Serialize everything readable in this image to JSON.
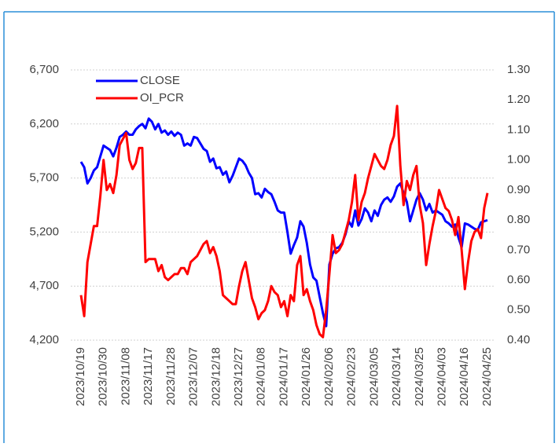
{
  "chart_data": {
    "type": "line",
    "categories": [
      "2023/10/19",
      null,
      null,
      null,
      null,
      null,
      null,
      "2023/10/30",
      null,
      null,
      null,
      null,
      null,
      null,
      "2023/11/08",
      null,
      null,
      null,
      null,
      null,
      null,
      "2023/11/17",
      null,
      null,
      null,
      null,
      null,
      null,
      "2023/11/28",
      null,
      null,
      null,
      null,
      null,
      null,
      "2023/12/07",
      null,
      null,
      null,
      null,
      null,
      null,
      "2023/12/18",
      null,
      null,
      null,
      null,
      null,
      null,
      "2023/12/27",
      null,
      null,
      null,
      null,
      null,
      null,
      "2024/01/08",
      null,
      null,
      null,
      null,
      null,
      null,
      "2024/01/17",
      null,
      null,
      null,
      null,
      null,
      null,
      "2024/01/26",
      null,
      null,
      null,
      null,
      null,
      null,
      "2024/02/06",
      null,
      null,
      null,
      null,
      null,
      null,
      "2024/02/23",
      null,
      null,
      null,
      null,
      null,
      null,
      "2024/03/05",
      null,
      null,
      null,
      null,
      null,
      null,
      "2024/03/14",
      null,
      null,
      null,
      null,
      null,
      null,
      "2024/03/25",
      null,
      null,
      null,
      null,
      null,
      null,
      "2024/04/03",
      null,
      null,
      null,
      null,
      null,
      null,
      "2024/04/16",
      null,
      null,
      null,
      null,
      null,
      null,
      "2024/04/25"
    ],
    "series": [
      {
        "name": "CLOSE",
        "color": "#0000ff",
        "values": [
          5850,
          5800,
          5650,
          5700,
          5770,
          5800,
          5900,
          6000,
          5980,
          5960,
          5900,
          5980,
          6080,
          6100,
          6130,
          6100,
          6100,
          6150,
          6180,
          6200,
          6160,
          6250,
          6220,
          6150,
          6200,
          6120,
          6140,
          6100,
          6130,
          6090,
          6120,
          6100,
          6000,
          6020,
          6000,
          6080,
          6070,
          6020,
          5970,
          5950,
          5850,
          5880,
          5790,
          5800,
          5730,
          5760,
          5660,
          5720,
          5800,
          5880,
          5860,
          5820,
          5750,
          5700,
          5550,
          5560,
          5520,
          5600,
          5570,
          5550,
          5480,
          5400,
          5380,
          5380,
          5200,
          5000,
          5080,
          5150,
          5300,
          5250,
          5100,
          4900,
          4780,
          4750,
          4600,
          4450,
          4330,
          4900,
          5000,
          5050,
          5060,
          5100,
          5180,
          5300,
          5250,
          5400,
          5260,
          5320,
          5420,
          5380,
          5300,
          5400,
          5350,
          5450,
          5500,
          5520,
          5480,
          5530,
          5620,
          5650,
          5560,
          5480,
          5300,
          5400,
          5500,
          5560,
          5500,
          5400,
          5460,
          5380,
          5400,
          5380,
          5360,
          5300,
          5280,
          5250,
          5270,
          5150,
          5060,
          5280,
          5270,
          5250,
          5230,
          5220,
          5290,
          5300,
          5310
        ]
      },
      {
        "name": "OI_PCR",
        "color": "#ff0000",
        "axis": "y2",
        "values": [
          0.55,
          0.48,
          0.66,
          0.72,
          0.78,
          0.78,
          0.88,
          1.0,
          0.9,
          0.92,
          0.89,
          0.95,
          1.05,
          1.07,
          1.09,
          1.0,
          0.97,
          0.99,
          1.04,
          1.04,
          0.66,
          0.67,
          0.67,
          0.67,
          0.63,
          0.65,
          0.61,
          0.6,
          0.61,
          0.62,
          0.62,
          0.64,
          0.64,
          0.62,
          0.66,
          0.67,
          0.68,
          0.7,
          0.72,
          0.73,
          0.69,
          0.71,
          0.68,
          0.63,
          0.55,
          0.54,
          0.53,
          0.52,
          0.52,
          0.58,
          0.63,
          0.66,
          0.6,
          0.54,
          0.51,
          0.47,
          0.49,
          0.5,
          0.53,
          0.58,
          0.56,
          0.55,
          0.51,
          0.53,
          0.48,
          0.55,
          0.53,
          0.65,
          0.68,
          0.55,
          0.57,
          0.53,
          0.5,
          0.45,
          0.42,
          0.41,
          0.5,
          0.62,
          0.75,
          0.69,
          0.7,
          0.72,
          0.76,
          0.8,
          0.86,
          0.95,
          0.8,
          0.86,
          0.89,
          0.94,
          0.98,
          1.02,
          1.0,
          0.98,
          0.97,
          1.0,
          1.05,
          1.08,
          1.18,
          0.98,
          0.85,
          0.93,
          0.9,
          0.95,
          0.98,
          0.85,
          0.79,
          0.65,
          0.72,
          0.78,
          0.83,
          0.9,
          0.87,
          0.84,
          0.83,
          0.8,
          0.75,
          0.81,
          0.7,
          0.57,
          0.66,
          0.73,
          0.76,
          0.77,
          0.74,
          0.84,
          0.89
        ]
      }
    ],
    "ylim": [
      4200,
      6700
    ],
    "yticks": [
      {
        "value": 4200,
        "label": "4,200"
      },
      {
        "value": 4700,
        "label": "4,700"
      },
      {
        "value": 5200,
        "label": "5,200"
      },
      {
        "value": 5700,
        "label": "5,700"
      },
      {
        "value": 6200,
        "label": "6,200"
      },
      {
        "value": 6700,
        "label": "6,700"
      }
    ],
    "y2lim": [
      0.4,
      1.3
    ],
    "y2ticks": [
      {
        "value": 0.4,
        "label": "0.40"
      },
      {
        "value": 0.5,
        "label": "0.50"
      },
      {
        "value": 0.6,
        "label": "0.60"
      },
      {
        "value": 0.7,
        "label": "0.70"
      },
      {
        "value": 0.8,
        "label": "0.80"
      },
      {
        "value": 0.9,
        "label": "0.90"
      },
      {
        "value": 1.0,
        "label": "1.00"
      },
      {
        "value": 1.1,
        "label": "1.10"
      },
      {
        "value": 1.2,
        "label": "1.20"
      },
      {
        "value": 1.3,
        "label": "1.30"
      }
    ],
    "grid": true,
    "legend": "upper-left"
  }
}
